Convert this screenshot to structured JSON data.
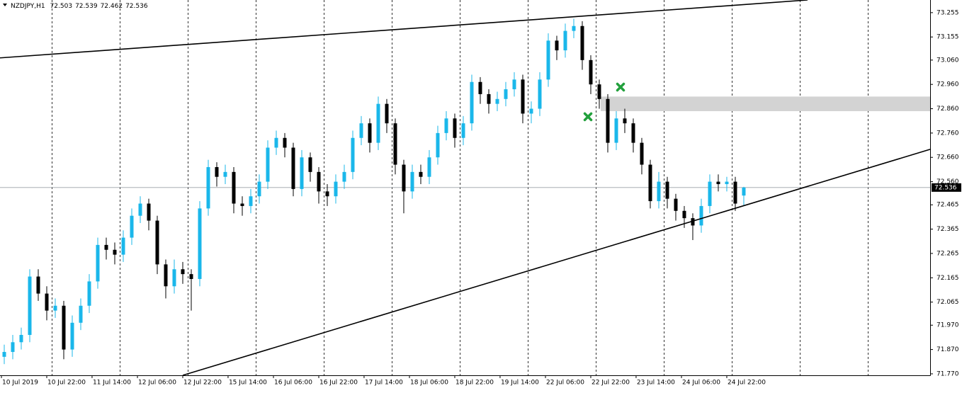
{
  "chart_data": {
    "type": "candlestick",
    "title": "NZDJPY,H1",
    "up_color": "#1ab7ea",
    "down_color": "#000000",
    "xlim": [
      -0.5,
      108.92
    ],
    "ylim": [
      71.764,
      73.307
    ],
    "yticks": [
      73.255,
      73.155,
      {
        "value": 73.06,
        "label": "73.060"
      },
      {
        "value": 72.96,
        "label": "72.960"
      },
      {
        "value": 72.86,
        "label": "72.860"
      },
      {
        "value": 72.76,
        "label": "72.760"
      },
      {
        "value": 72.66,
        "label": "72.660"
      },
      {
        "value": 72.56,
        "label": "72.560"
      },
      72.465,
      72.365,
      72.265,
      72.165,
      72.065,
      {
        "value": 71.97,
        "label": "71.970"
      },
      {
        "value": 71.87,
        "label": "71.870"
      },
      {
        "value": 71.77,
        "label": "71.770"
      }
    ],
    "xticks": [
      {
        "value": -0.33,
        "label": "10 Jul 2019"
      },
      {
        "value": 5,
        "label": "10 Jul 22:00"
      },
      {
        "value": 10.33,
        "label": "11 Jul 14:00"
      },
      {
        "value": 15.67,
        "label": "12 Jul 06:00"
      },
      {
        "value": 21,
        "label": "12 Jul 22:00"
      },
      {
        "value": 26.33,
        "label": "15 Jul 14:00"
      },
      {
        "value": 31.67,
        "label": "16 Jul 06:00"
      },
      {
        "value": 37,
        "label": "16 Jul 22:00"
      },
      {
        "value": 42.33,
        "label": "17 Jul 14:00"
      },
      {
        "value": 47.67,
        "label": "18 Jul 06:00"
      },
      {
        "value": 53,
        "label": "18 Jul 22:00"
      },
      {
        "value": 58.33,
        "label": "19 Jul 14:00"
      },
      {
        "value": 63.67,
        "label": "22 Jul 06:00"
      },
      {
        "value": 69,
        "label": "22 Jul 22:00"
      },
      {
        "value": 74.33,
        "label": "23 Jul 14:00"
      },
      {
        "value": 79.67,
        "label": "24 Jul 06:00"
      },
      {
        "value": 85,
        "label": "24 Jul 22:00"
      }
    ],
    "open": [
      71.84,
      71.86,
      71.9,
      71.93,
      72.17,
      72.1,
      72.03,
      72.05,
      71.87,
      71.98,
      72.05,
      72.15,
      72.3,
      72.28,
      72.26,
      72.33,
      72.42,
      72.47,
      72.4,
      72.22,
      72.13,
      72.2,
      72.18,
      72.16,
      72.45,
      72.62,
      72.58,
      72.6,
      72.47,
      72.46,
      72.5,
      72.56,
      72.7,
      72.74,
      72.7,
      72.53,
      72.66,
      72.6,
      72.52,
      72.5,
      72.56,
      72.6,
      72.74,
      72.8,
      72.72,
      72.88,
      72.8,
      72.63,
      72.52,
      72.6,
      72.58,
      72.66,
      72.76,
      72.82,
      72.74,
      72.8,
      72.97,
      72.92,
      72.88,
      72.9,
      72.94,
      72.98,
      72.84,
      72.86,
      72.98,
      73.14,
      73.1,
      73.18,
      73.2,
      73.06,
      72.96,
      72.9,
      72.72,
      72.82,
      72.8,
      72.72,
      72.63,
      72.48,
      72.56,
      72.49,
      72.44,
      72.41,
      72.38,
      72.46,
      72.56,
      72.55,
      72.56,
      72.503
    ],
    "high": [
      71.89,
      71.93,
      71.96,
      72.2,
      72.2,
      72.13,
      72.08,
      72.07,
      72.01,
      72.08,
      72.18,
      72.33,
      72.33,
      72.31,
      72.36,
      72.45,
      72.5,
      72.49,
      72.42,
      72.24,
      72.24,
      72.23,
      72.2,
      72.48,
      72.65,
      72.64,
      72.63,
      72.62,
      72.5,
      72.53,
      72.59,
      72.73,
      72.77,
      72.76,
      72.72,
      72.69,
      72.68,
      72.62,
      72.55,
      72.59,
      72.63,
      72.77,
      72.83,
      72.82,
      72.91,
      72.9,
      72.82,
      72.65,
      72.63,
      72.63,
      72.69,
      72.79,
      72.85,
      72.84,
      72.83,
      73.0,
      72.99,
      72.94,
      72.93,
      72.97,
      73.01,
      73.0,
      72.89,
      73.01,
      73.17,
      73.16,
      73.21,
      73.23,
      73.22,
      73.08,
      72.98,
      72.92,
      72.85,
      72.86,
      72.82,
      72.74,
      72.65,
      72.6,
      72.58,
      72.51,
      72.46,
      72.43,
      72.49,
      72.59,
      72.59,
      72.58,
      72.58,
      72.539
    ],
    "low": [
      71.81,
      71.83,
      71.87,
      71.9,
      72.07,
      71.99,
      72.0,
      71.83,
      71.84,
      71.95,
      72.02,
      72.12,
      72.24,
      72.22,
      72.23,
      72.3,
      72.39,
      72.36,
      72.18,
      72.08,
      72.1,
      72.14,
      72.03,
      72.13,
      72.42,
      72.54,
      72.55,
      72.43,
      72.42,
      72.43,
      72.47,
      72.53,
      72.67,
      72.66,
      72.5,
      72.5,
      72.56,
      72.47,
      72.46,
      72.47,
      72.53,
      72.57,
      72.71,
      72.68,
      72.69,
      72.76,
      72.59,
      72.43,
      72.49,
      72.55,
      72.55,
      72.63,
      72.73,
      72.7,
      72.71,
      72.77,
      72.88,
      72.84,
      72.85,
      72.87,
      72.91,
      72.8,
      72.8,
      72.83,
      72.95,
      73.06,
      73.07,
      73.15,
      73.02,
      72.92,
      72.86,
      72.68,
      72.69,
      72.76,
      72.68,
      72.59,
      72.45,
      72.45,
      72.45,
      72.4,
      72.37,
      72.32,
      72.35,
      72.43,
      72.52,
      72.52,
      72.44,
      72.462
    ],
    "close": [
      71.86,
      71.9,
      71.93,
      72.17,
      72.1,
      72.03,
      72.05,
      71.87,
      71.98,
      72.05,
      72.15,
      72.3,
      72.28,
      72.26,
      72.33,
      72.42,
      72.47,
      72.4,
      72.22,
      72.13,
      72.2,
      72.18,
      72.16,
      72.45,
      72.62,
      72.58,
      72.6,
      72.47,
      72.46,
      72.5,
      72.56,
      72.7,
      72.74,
      72.7,
      72.53,
      72.66,
      72.6,
      72.52,
      72.5,
      72.56,
      72.6,
      72.74,
      72.8,
      72.72,
      72.88,
      72.8,
      72.63,
      72.52,
      72.6,
      72.58,
      72.66,
      72.76,
      72.82,
      72.74,
      72.8,
      72.97,
      72.92,
      72.88,
      72.9,
      72.94,
      72.98,
      72.84,
      72.86,
      72.98,
      73.14,
      73.1,
      73.18,
      73.2,
      73.06,
      72.96,
      72.9,
      72.72,
      72.82,
      72.8,
      72.72,
      72.63,
      72.48,
      72.56,
      72.49,
      72.44,
      72.41,
      72.38,
      72.46,
      72.56,
      72.55,
      72.56,
      72.47,
      72.536
    ],
    "trendlines": [
      {
        "x": [
          -0.5,
          94.5
        ],
        "y": [
          73.069,
          73.307
        ]
      },
      {
        "x": [
          21,
          108.92
        ],
        "y": [
          71.764,
          72.693
        ]
      }
    ],
    "zone": {
      "x": [
        70.17,
        108.92
      ],
      "y": [
        72.85,
        72.91
      ],
      "color": "#d3d3d3"
    },
    "markers": {
      "color": "#22a03c",
      "x": [
        72.5,
        68.67
      ],
      "y": [
        72.949,
        72.827
      ]
    }
  }
}
